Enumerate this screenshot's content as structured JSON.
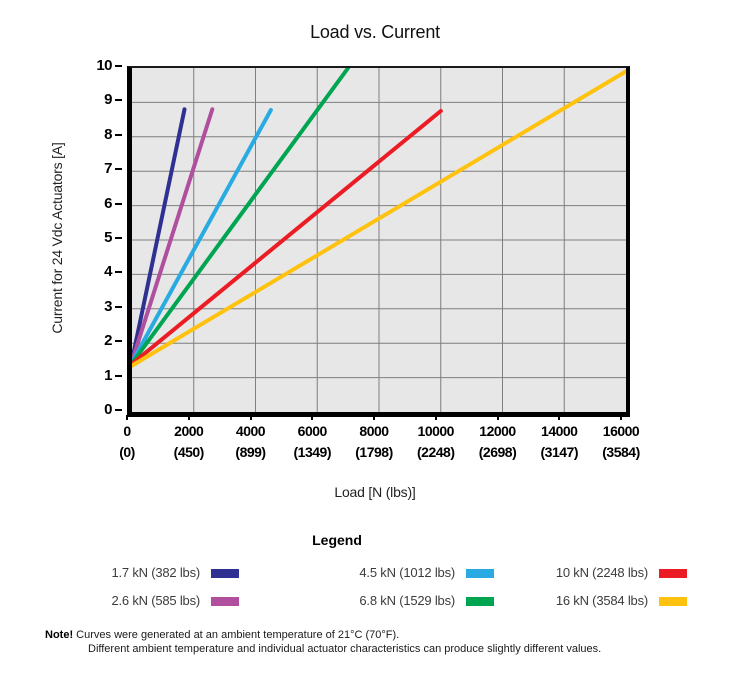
{
  "title": "Load vs. Current",
  "y_axis": {
    "label": "Current for 24 Vdc Actuators [A]"
  },
  "x_axis": {
    "label": "Load [N (lbs)]"
  },
  "legend": {
    "title": "Legend"
  },
  "note": {
    "prefix": "Note!",
    "line1": "Curves were generated at an ambient temperature of 21°C (70°F).",
    "line2": "Different ambient temperature and individual actuator characteristics can produce slightly different values."
  },
  "colors": {
    "plot_bg": "#E7E7E7",
    "grid": "#7F7F7F",
    "axis": "#000000"
  },
  "chart_data": {
    "type": "line",
    "title": "Load vs. Current",
    "xlabel": "Load [N (lbs)]",
    "ylabel": "Current for 24 Vdc Actuators [A]",
    "xlim": [
      0,
      16000
    ],
    "ylim": [
      0,
      10
    ],
    "grid": true,
    "legend_position": "bottom",
    "y_ticks": [
      0,
      1,
      2,
      3,
      4,
      5,
      6,
      7,
      8,
      9,
      10
    ],
    "x_ticks": [
      {
        "n": "0",
        "lbs": "(0)"
      },
      {
        "n": "2000",
        "lbs": "(450)"
      },
      {
        "n": "4000",
        "lbs": "(899)"
      },
      {
        "n": "6000",
        "lbs": "(1349)"
      },
      {
        "n": "8000",
        "lbs": "(1798)"
      },
      {
        "n": "10000",
        "lbs": "(2248)"
      },
      {
        "n": "12000",
        "lbs": "(2698)"
      },
      {
        "n": "14000",
        "lbs": "(3147)"
      },
      {
        "n": "16000",
        "lbs": "(3584)"
      }
    ],
    "series": [
      {
        "name": "1.7 kN (382 lbs)",
        "color": "#2E3192",
        "points": [
          [
            0,
            1.5
          ],
          [
            1700,
            8.8
          ]
        ]
      },
      {
        "name": "2.6 kN (585 lbs)",
        "color": "#AF4F9E",
        "points": [
          [
            0,
            1.48
          ],
          [
            2600,
            8.8
          ]
        ]
      },
      {
        "name": "4.5 kN (1012 lbs)",
        "color": "#29ABE2",
        "points": [
          [
            0,
            1.45
          ],
          [
            4500,
            8.78
          ]
        ]
      },
      {
        "name": "6.8 kN (1529 lbs)",
        "color": "#00A551",
        "points": [
          [
            0,
            1.42
          ],
          [
            7000,
            10.0
          ]
        ]
      },
      {
        "name": "10 kN (2248 lbs)",
        "color": "#EC1C24",
        "points": [
          [
            0,
            1.4
          ],
          [
            10000,
            8.75
          ]
        ]
      },
      {
        "name": "16 kN (3584 lbs)",
        "color": "#FFC20E",
        "points": [
          [
            0,
            1.35
          ],
          [
            16000,
            9.9
          ]
        ]
      }
    ]
  }
}
